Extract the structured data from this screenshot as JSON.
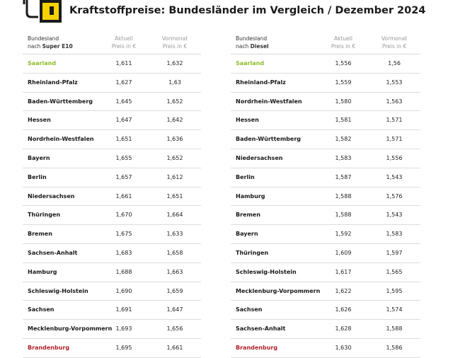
{
  "title": "Kraftstoffpreise: Bundesländer im Vergleich / Dezember 2024",
  "colors": {
    "accent_yellow": "#f5d200",
    "highlight_green": "#8dbb2a",
    "highlight_red": "#b0202a"
  },
  "icon": "fuel-pump-icon",
  "tables": [
    {
      "header": {
        "col1_line1": "Bundesland",
        "col1_prefix": "nach ",
        "col1_fuel": "Super E10",
        "col2_line1": "Aktuell",
        "col2_line2": "Preis in €",
        "col3_line1": "Vormonat",
        "col3_line2": "Preis in €"
      },
      "rows": [
        {
          "state": "Saarland",
          "current": "1,611",
          "previous": "1,632"
        },
        {
          "state": "Rheinland-Pfalz",
          "current": "1,627",
          "previous": "1,63"
        },
        {
          "state": "Baden-Württemberg",
          "current": "1,645",
          "previous": "1,652"
        },
        {
          "state": "Hessen",
          "current": "1,647",
          "previous": "1,642"
        },
        {
          "state": "Nordrhein-Westfalen",
          "current": "1,651",
          "previous": "1,636"
        },
        {
          "state": "Bayern",
          "current": "1,655",
          "previous": "1,652"
        },
        {
          "state": "Berlin",
          "current": "1,657",
          "previous": "1,612"
        },
        {
          "state": "Niedersachsen",
          "current": "1,661",
          "previous": "1,651"
        },
        {
          "state": "Thüringen",
          "current": "1,670",
          "previous": "1,664"
        },
        {
          "state": "Bremen",
          "current": "1,675",
          "previous": "1,633"
        },
        {
          "state": "Sachsen-Anhalt",
          "current": "1,683",
          "previous": "1,658"
        },
        {
          "state": "Hamburg",
          "current": "1,688",
          "previous": "1,663"
        },
        {
          "state": "Schleswig-Holstein",
          "current": "1,690",
          "previous": "1,659"
        },
        {
          "state": "Sachsen",
          "current": "1,691",
          "previous": "1,647"
        },
        {
          "state": "Mecklenburg-Vorpommern",
          "current": "1,693",
          "previous": "1,656"
        },
        {
          "state": "Brandenburg",
          "current": "1,695",
          "previous": "1,661"
        }
      ]
    },
    {
      "header": {
        "col1_line1": "Bundesland",
        "col1_prefix": "nach ",
        "col1_fuel": "Diesel",
        "col2_line1": "Aktuell",
        "col2_line2": "Preis in €",
        "col3_line1": "Vormonat",
        "col3_line2": "Preis in €"
      },
      "rows": [
        {
          "state": "Saarland",
          "current": "1,556",
          "previous": "1,56"
        },
        {
          "state": "Rheinland-Pfalz",
          "current": "1,559",
          "previous": "1,553"
        },
        {
          "state": "Nordrhein-Westfalen",
          "current": "1,580",
          "previous": "1,563"
        },
        {
          "state": "Hessen",
          "current": "1,581",
          "previous": "1,571"
        },
        {
          "state": "Baden-Württemberg",
          "current": "1,582",
          "previous": "1,571"
        },
        {
          "state": "Niedersachsen",
          "current": "1,583",
          "previous": "1,556"
        },
        {
          "state": "Berlin",
          "current": "1,587",
          "previous": "1,543"
        },
        {
          "state": "Hamburg",
          "current": "1,588",
          "previous": "1,576"
        },
        {
          "state": "Bremen",
          "current": "1,588",
          "previous": "1,543"
        },
        {
          "state": "Bayern",
          "current": "1,592",
          "previous": "1,583"
        },
        {
          "state": "Thüringen",
          "current": "1,609",
          "previous": "1,597"
        },
        {
          "state": "Schleswig-Holstein",
          "current": "1,617",
          "previous": "1,565"
        },
        {
          "state": "Mecklenburg-Vorpommern",
          "current": "1,622",
          "previous": "1,595"
        },
        {
          "state": "Sachsen",
          "current": "1,626",
          "previous": "1,574"
        },
        {
          "state": "Sachsen-Anhalt",
          "current": "1,628",
          "previous": "1,588"
        },
        {
          "state": "Brandenburg",
          "current": "1,630",
          "previous": "1,586"
        }
      ]
    }
  ]
}
